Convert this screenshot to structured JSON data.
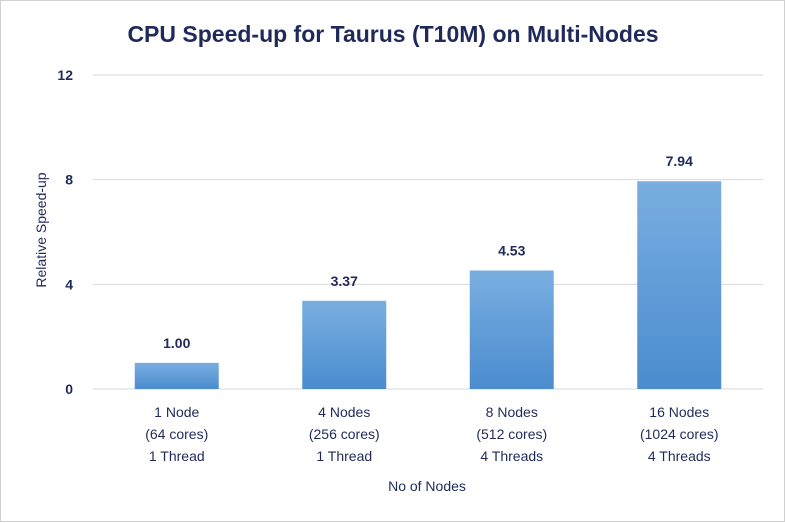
{
  "chart_data": {
    "type": "bar",
    "title": "CPU Speed-up for Taurus (T10M) on Multi-Nodes",
    "xlabel": "No of Nodes",
    "ylabel": "Relative Speed-up",
    "ylim": [
      0,
      12
    ],
    "yticks": [
      "0",
      "4",
      "8",
      "12"
    ],
    "grid": true,
    "categories": [
      [
        "1 Node",
        "(64 cores)",
        "1 Thread"
      ],
      [
        "4 Nodes",
        "(256 cores)",
        "1 Thread"
      ],
      [
        "8 Nodes",
        "(512 cores)",
        "4 Threads"
      ],
      [
        "16 Nodes",
        "(1024 cores)",
        "4 Threads"
      ]
    ],
    "values": [
      1.0,
      3.37,
      4.53,
      7.94
    ],
    "data_labels": [
      "1.00",
      "3.37",
      "4.53",
      "7.94"
    ],
    "bar_color_top": "#7aaee0",
    "bar_color_bottom": "#4a8ccf"
  }
}
